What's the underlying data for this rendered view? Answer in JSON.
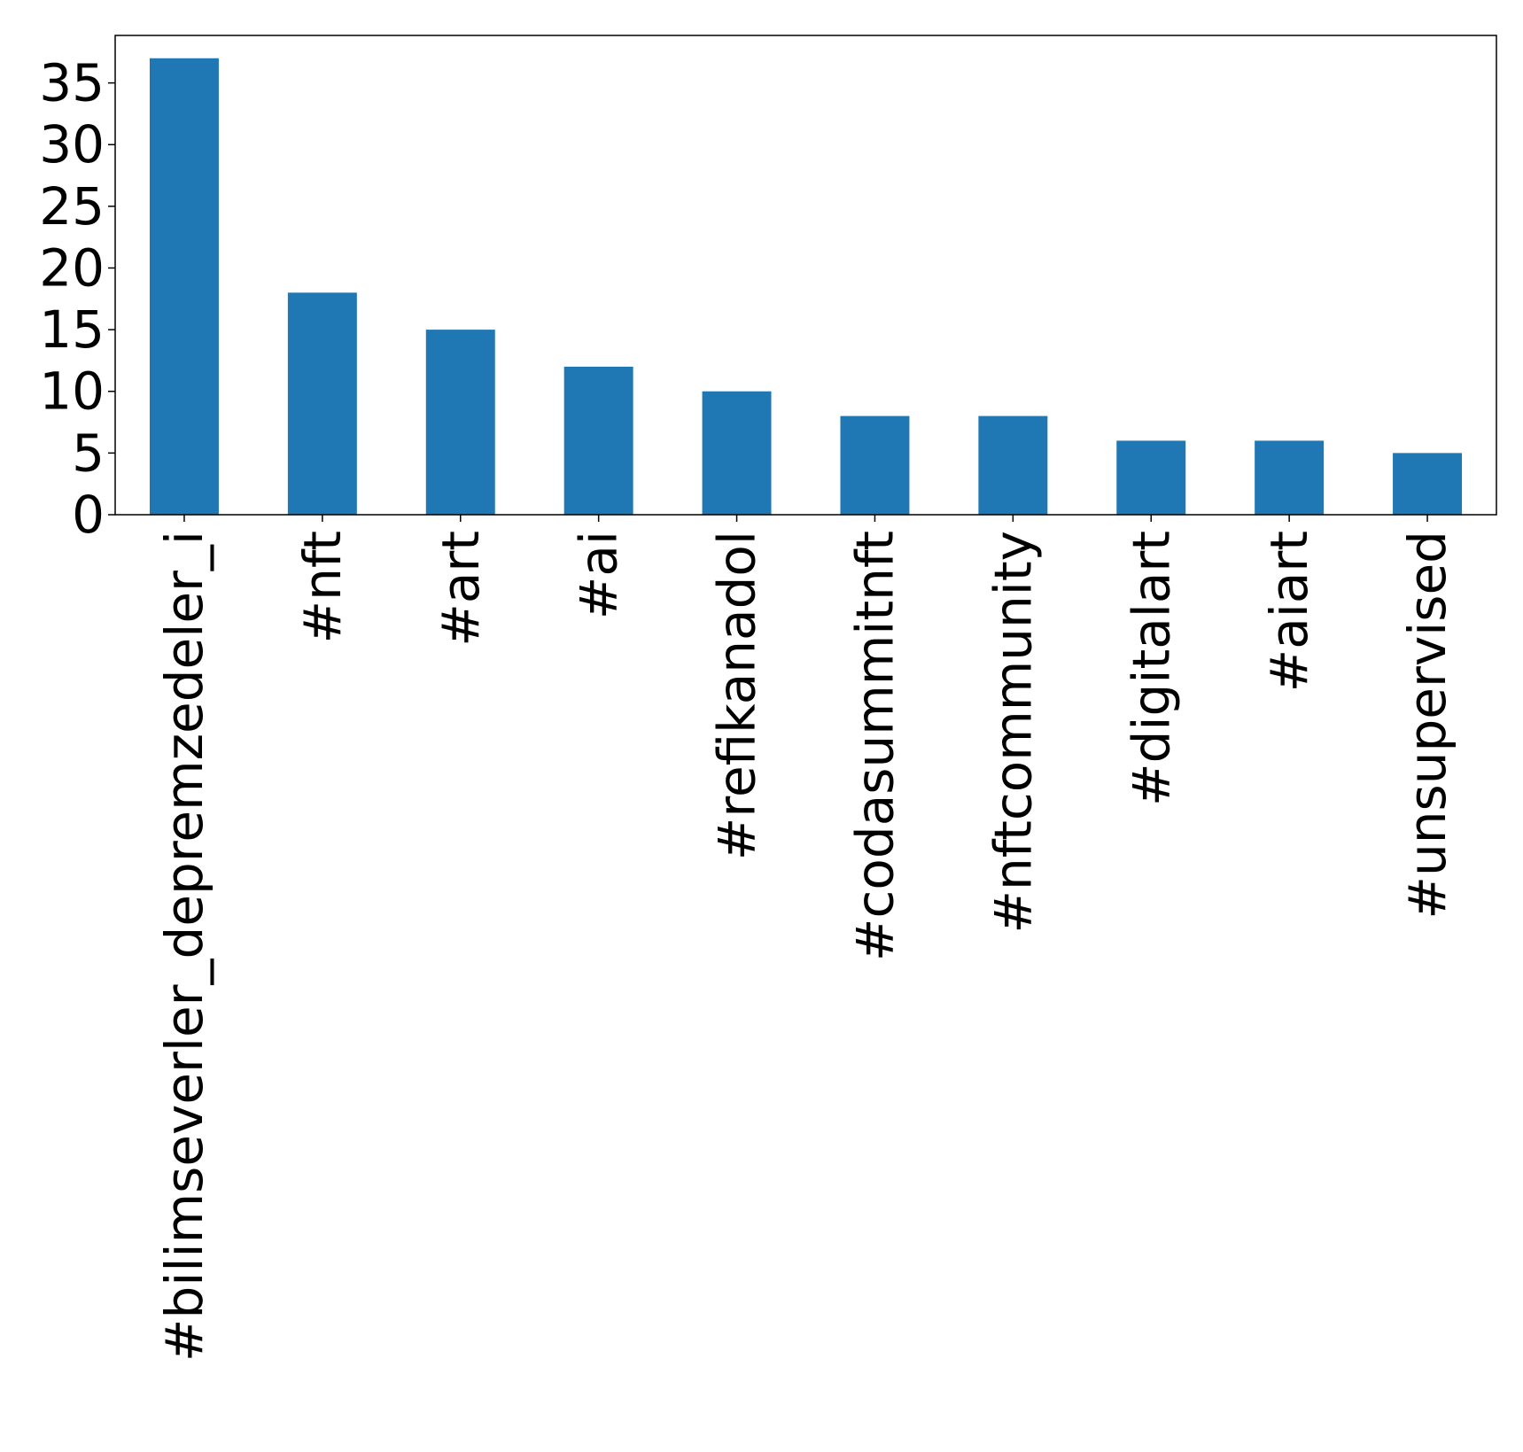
{
  "chart_data": {
    "type": "bar",
    "title": "",
    "xlabel": "",
    "ylabel": "",
    "categories": [
      "#bilimseverler_depremzedeler_i",
      "#nft",
      "#art",
      "#ai",
      "#refikanadol",
      "#codasummitnft",
      "#nftcommunity",
      "#digitalart",
      "#aiart",
      "#unsupervised"
    ],
    "values": [
      37,
      18,
      15,
      12,
      10,
      8,
      8,
      6,
      6,
      5
    ],
    "ylim": [
      0,
      38.85
    ],
    "yticks": [
      0,
      5,
      10,
      15,
      20,
      25,
      30,
      35
    ],
    "bar_color": "#1f77b4",
    "grid": false,
    "legend": false
  }
}
